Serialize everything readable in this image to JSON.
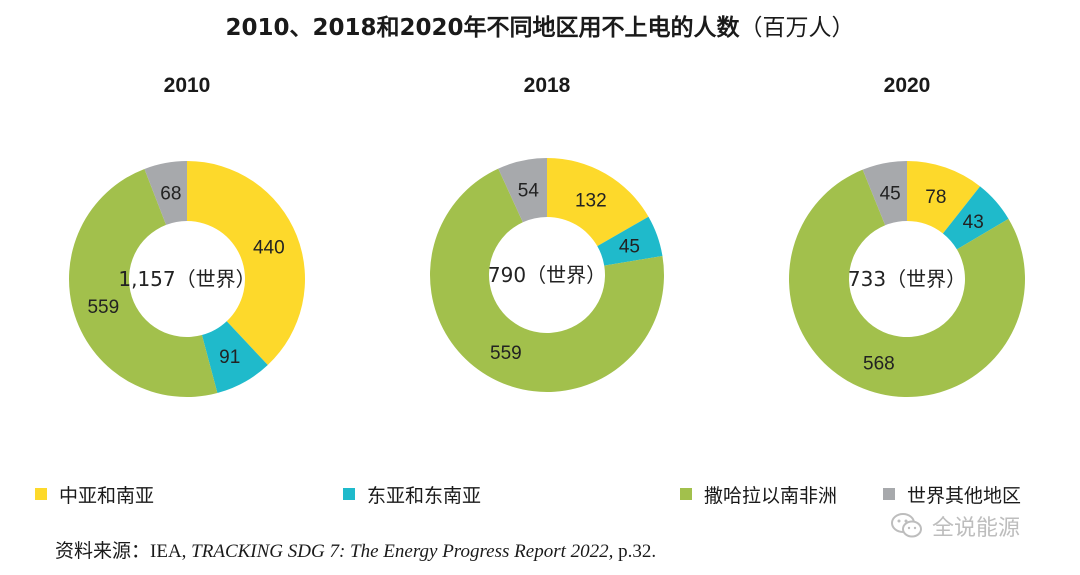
{
  "title": {
    "main": "2010、2018和2020年不同地区用不上电的人数",
    "unit": "（百万人）"
  },
  "chart_data": [
    {
      "type": "pie",
      "title": "2010",
      "center_label": "1,157（世界）",
      "categories": [
        "中亚和南亚",
        "东亚和东南亚",
        "撒哈拉以南非洲",
        "世界其他地区"
      ],
      "values": [
        440,
        91,
        559,
        68
      ],
      "value_labels": [
        "440",
        "91",
        "559",
        "68"
      ]
    },
    {
      "type": "pie",
      "title": "2018",
      "center_label": "790（世界）",
      "categories": [
        "中亚和南亚",
        "东亚和东南亚",
        "撒哈拉以南非洲",
        "世界其他地区"
      ],
      "values": [
        132,
        45,
        559,
        54
      ],
      "value_labels": [
        "132",
        "45",
        "559",
        "54"
      ]
    },
    {
      "type": "pie",
      "title": "2020",
      "center_label": "733（世界）",
      "categories": [
        "中亚和南亚",
        "东亚和东南亚",
        "撒哈拉以南非洲",
        "世界其他地区"
      ],
      "values": [
        78,
        43,
        568,
        45
      ],
      "value_labels": [
        "78",
        "43",
        "568",
        "45"
      ]
    }
  ],
  "colors": {
    "south_asia": "#fdd92b",
    "east_asia": "#1fbacb",
    "ssa": "#a2c04c",
    "other": "#a7a9ac"
  },
  "legend": [
    {
      "label": "中亚和南亚",
      "color": "#fdd92b"
    },
    {
      "label": "东亚和东南亚",
      "color": "#1fbacb"
    },
    {
      "label": "撒哈拉以南非洲",
      "color": "#a2c04c"
    },
    {
      "label": "世界其他地区",
      "color": "#a7a9ac"
    }
  ],
  "source": {
    "prefix": "资料来源：",
    "org": "IEA, ",
    "report": "TRACKING SDG 7: The Energy Progress Report 2022,",
    "page": " p.32."
  },
  "watermark": {
    "text": "全说能源",
    "icon": "wechat-icon"
  }
}
